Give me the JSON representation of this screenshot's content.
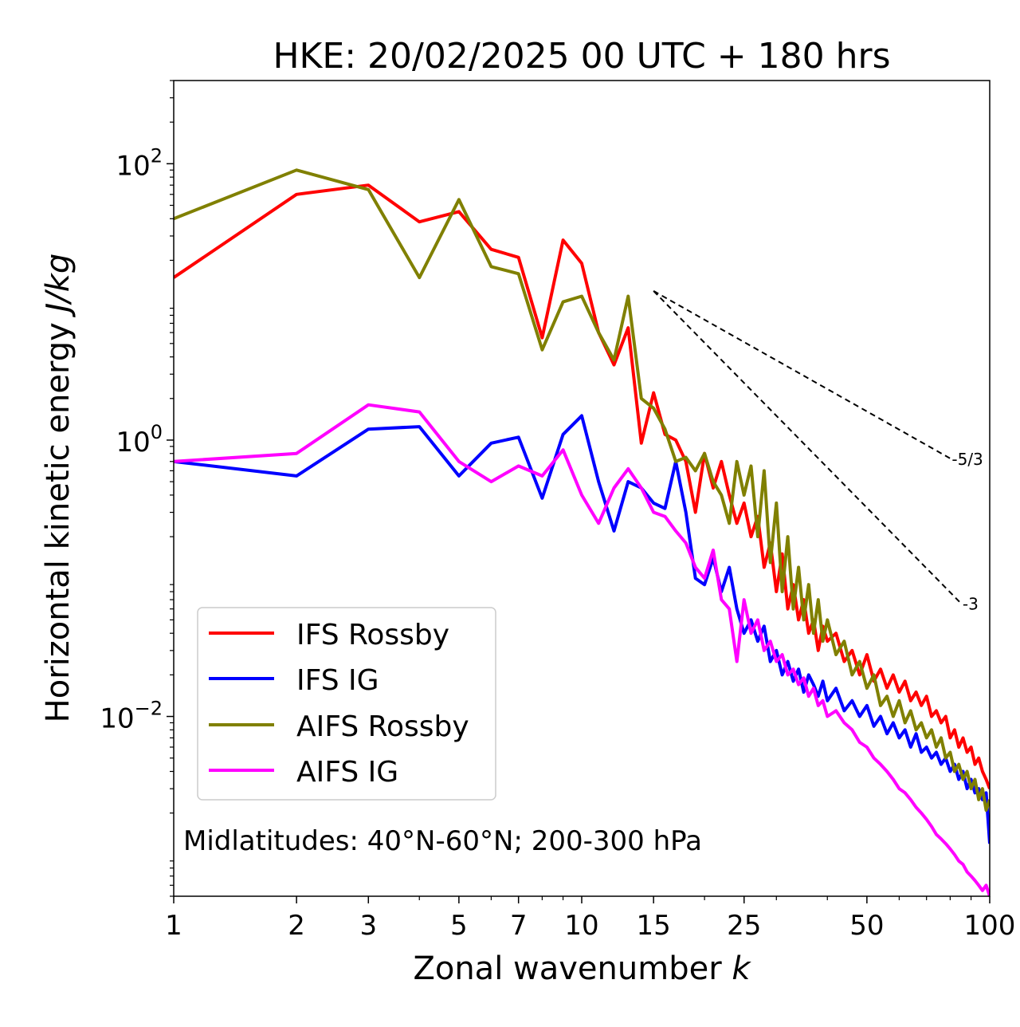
{
  "chart_data": {
    "type": "line",
    "title": "HKE: 20/02/2025 00 UTC + 180 hrs",
    "xlabel": "Zonal wavenumber",
    "xlabel_var": "k",
    "ylabel": "Horizontal kinetic energy",
    "ylabel_unit": "J/kg",
    "xscale": "log",
    "yscale": "log",
    "xlim": [
      1,
      100
    ],
    "ylim": [
      0.0005,
      400
    ],
    "xticks": [
      1,
      2,
      3,
      5,
      7,
      10,
      15,
      25,
      50,
      100
    ],
    "xtick_labels": [
      "1",
      "2",
      "3",
      "5",
      "7",
      "10",
      "15",
      "25",
      "50",
      "100"
    ],
    "yticks": [
      {
        "value": 100,
        "base": "10",
        "exp": "2"
      },
      {
        "value": 1,
        "base": "10",
        "exp": "0"
      },
      {
        "value": 0.01,
        "base": "10",
        "exp": "−2"
      }
    ],
    "annotation": "Midlatitudes: 40°N-60°N; 200-300 hPa",
    "legend_position": "lower-left",
    "reference_slopes": [
      {
        "label": "-5/3",
        "slope": -1.6667,
        "x": [
          15,
          80
        ],
        "y0": 12
      },
      {
        "label": "-3",
        "slope": -3,
        "x": [
          15,
          85
        ],
        "y0": 12
      }
    ],
    "series": [
      {
        "name": "IFS Rossby",
        "color": "#ff0000",
        "x": [
          1,
          2,
          3,
          4,
          5,
          6,
          7,
          8,
          9,
          10,
          11,
          12,
          13,
          14,
          15,
          16,
          17,
          18,
          19,
          20,
          21,
          22,
          23,
          24,
          25,
          26,
          27,
          28,
          29,
          30,
          31,
          32,
          33,
          34,
          35,
          36,
          37,
          38,
          39,
          40,
          42,
          44,
          46,
          48,
          50,
          52,
          54,
          56,
          58,
          60,
          62,
          64,
          66,
          68,
          70,
          72,
          74,
          76,
          78,
          80,
          82,
          84,
          86,
          88,
          90,
          92,
          94,
          96,
          98,
          100
        ],
        "y": [
          15,
          60,
          70,
          38,
          45,
          24,
          21,
          5.5,
          28,
          19,
          6,
          3.5,
          6.5,
          0.95,
          2.2,
          1.1,
          1.0,
          0.7,
          0.3,
          0.8,
          0.45,
          0.7,
          0.4,
          0.25,
          0.35,
          0.2,
          0.28,
          0.12,
          0.18,
          0.08,
          0.15,
          0.06,
          0.09,
          0.05,
          0.07,
          0.04,
          0.05,
          0.03,
          0.045,
          0.035,
          0.04,
          0.025,
          0.03,
          0.02,
          0.028,
          0.018,
          0.022,
          0.016,
          0.02,
          0.015,
          0.018,
          0.013,
          0.015,
          0.012,
          0.014,
          0.01,
          0.011,
          0.009,
          0.01,
          0.007,
          0.008,
          0.006,
          0.007,
          0.0055,
          0.006,
          0.0045,
          0.005,
          0.004,
          0.0035,
          0.003
        ]
      },
      {
        "name": "IFS IG",
        "color": "#0000ff",
        "x": [
          1,
          2,
          3,
          4,
          5,
          6,
          7,
          8,
          9,
          10,
          11,
          12,
          13,
          14,
          15,
          16,
          17,
          18,
          19,
          20,
          21,
          22,
          23,
          24,
          25,
          26,
          27,
          28,
          29,
          30,
          31,
          32,
          33,
          34,
          35,
          36,
          37,
          38,
          39,
          40,
          42,
          44,
          46,
          48,
          50,
          52,
          54,
          56,
          58,
          60,
          62,
          64,
          66,
          68,
          70,
          72,
          74,
          76,
          78,
          80,
          82,
          84,
          86,
          88,
          90,
          92,
          94,
          96,
          98,
          100
        ],
        "y": [
          0.7,
          0.55,
          1.2,
          1.25,
          0.55,
          0.95,
          1.05,
          0.38,
          1.1,
          1.5,
          0.5,
          0.22,
          0.5,
          0.45,
          0.35,
          0.32,
          0.7,
          0.3,
          0.1,
          0.09,
          0.14,
          0.08,
          0.12,
          0.06,
          0.04,
          0.05,
          0.035,
          0.045,
          0.025,
          0.03,
          0.02,
          0.025,
          0.018,
          0.022,
          0.015,
          0.02,
          0.017,
          0.014,
          0.018,
          0.013,
          0.016,
          0.011,
          0.013,
          0.01,
          0.012,
          0.0085,
          0.01,
          0.0075,
          0.009,
          0.007,
          0.008,
          0.006,
          0.0075,
          0.0055,
          0.006,
          0.005,
          0.0055,
          0.0045,
          0.005,
          0.004,
          0.0045,
          0.0035,
          0.004,
          0.003,
          0.0035,
          0.0028,
          0.003,
          0.0025,
          0.0028,
          0.0012
        ]
      },
      {
        "name": "AIFS Rossby",
        "color": "#808000",
        "x": [
          1,
          2,
          3,
          4,
          5,
          6,
          7,
          8,
          9,
          10,
          11,
          12,
          13,
          14,
          15,
          16,
          17,
          18,
          19,
          20,
          21,
          22,
          23,
          24,
          25,
          26,
          27,
          28,
          29,
          30,
          31,
          32,
          33,
          34,
          35,
          36,
          37,
          38,
          39,
          40,
          42,
          44,
          46,
          48,
          50,
          52,
          54,
          56,
          58,
          60,
          62,
          64,
          66,
          68,
          70,
          72,
          74,
          76,
          78,
          80,
          82,
          84,
          86,
          88,
          90,
          92,
          94,
          96,
          98,
          100
        ],
        "y": [
          40,
          90,
          65,
          15,
          55,
          18,
          16,
          4.5,
          10,
          11,
          6,
          3.8,
          11,
          2,
          1.7,
          1.2,
          0.7,
          0.75,
          0.6,
          0.8,
          0.5,
          0.4,
          0.25,
          0.7,
          0.4,
          0.65,
          0.2,
          0.6,
          0.13,
          0.35,
          0.08,
          0.2,
          0.06,
          0.12,
          0.05,
          0.09,
          0.04,
          0.07,
          0.035,
          0.05,
          0.028,
          0.035,
          0.02,
          0.025,
          0.016,
          0.02,
          0.012,
          0.014,
          0.01,
          0.013,
          0.009,
          0.011,
          0.008,
          0.009,
          0.007,
          0.008,
          0.006,
          0.007,
          0.005,
          0.0055,
          0.004,
          0.0045,
          0.0035,
          0.004,
          0.003,
          0.0035,
          0.0025,
          0.003,
          0.0021,
          0.0025
        ]
      },
      {
        "name": "AIFS IG",
        "color": "#ff00ff",
        "x": [
          1,
          2,
          3,
          4,
          5,
          6,
          7,
          8,
          9,
          10,
          11,
          12,
          13,
          14,
          15,
          16,
          17,
          18,
          19,
          20,
          21,
          22,
          23,
          24,
          25,
          26,
          27,
          28,
          29,
          30,
          31,
          32,
          33,
          34,
          35,
          36,
          37,
          38,
          39,
          40,
          42,
          44,
          46,
          48,
          50,
          52,
          54,
          56,
          58,
          60,
          62,
          64,
          66,
          68,
          70,
          72,
          74,
          76,
          78,
          80,
          82,
          84,
          86,
          88,
          90,
          92,
          94,
          96,
          98,
          100
        ],
        "y": [
          0.7,
          0.8,
          1.8,
          1.6,
          0.7,
          0.5,
          0.65,
          0.55,
          0.85,
          0.4,
          0.25,
          0.45,
          0.62,
          0.45,
          0.3,
          0.28,
          0.22,
          0.18,
          0.12,
          0.1,
          0.16,
          0.07,
          0.06,
          0.025,
          0.07,
          0.04,
          0.05,
          0.03,
          0.035,
          0.025,
          0.028,
          0.02,
          0.022,
          0.017,
          0.019,
          0.014,
          0.016,
          0.012,
          0.013,
          0.01,
          0.011,
          0.009,
          0.008,
          0.0065,
          0.006,
          0.005,
          0.0045,
          0.004,
          0.0035,
          0.003,
          0.0028,
          0.0025,
          0.0022,
          0.002,
          0.0018,
          0.0016,
          0.0014,
          0.0013,
          0.0012,
          0.0011,
          0.001,
          0.0009,
          0.00085,
          0.00075,
          0.0007,
          0.00065,
          0.0006,
          0.00055,
          0.0006,
          0.0005
        ]
      }
    ]
  }
}
